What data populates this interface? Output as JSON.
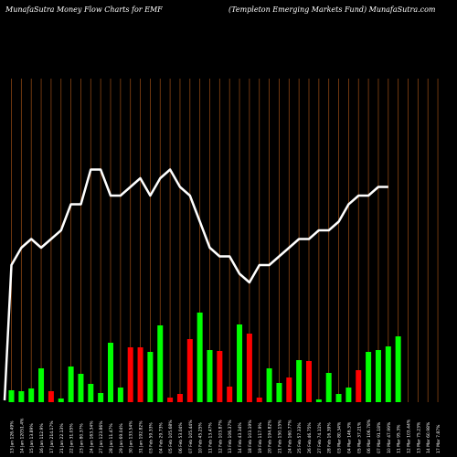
{
  "header": {
    "left": "MunafaSutra  Money Flow  Charts for EMF",
    "right": "(Templeton  Emerging Markets Fund) MunafaSutra.com"
  },
  "chart_data": {
    "type": "bar",
    "title": "MunafaSutra  Money Flow  Charts for EMF",
    "subtitle": "(Templeton  Emerging Markets Fund) MunafaSutra.com",
    "colors": {
      "up": "#00ff00",
      "down": "#ff0000",
      "price_line": "#ffffff",
      "grid": "#8b4513",
      "background": "#000000"
    },
    "x_labels": [
      "13 Jan 126.49%",
      "14 Jan 12051.4%",
      "15 Jan 13.89%",
      "16 Jan 112.9%",
      "17 Jan 214.17%",
      "21 Jan 22.13%",
      "22 Jan 31.05%",
      "23 Jan 80.37%",
      "24 Jan 163.34%",
      "27 Jan 123.86%",
      "28 Jan 11.47%",
      "29 Jan 69.04%",
      "30 Jan 133.54%",
      "31 Jan 192.82%",
      "03 Feb 59.33%",
      "04 Feb 29.73%",
      "05 Feb 105.68%",
      "06 Feb 53.04%",
      "07 Feb 105.44%",
      "10 Feb 45.25%",
      "11 Feb 13.47%",
      "12 Feb 103.87%",
      "13 Feb 106.37%",
      "14 Feb 43.34%",
      "18 Feb 103.19%",
      "19 Feb 117.9%",
      "20 Feb 194.82%",
      "21 Feb 150.15%",
      "24 Feb 160.77%",
      "25 Feb 57.33%",
      "26 Feb 46.75%",
      "27 Feb 74.11%",
      "28 Feb 16.39%",
      "03 Mar 80.34%",
      "04 Mar 146.3%",
      "05 Mar 37.21%",
      "06 Mar 106.78%",
      "07 Mar 91.18%",
      "10 Mar 47.99%",
      "11 Mar 95.3%",
      "12 Mar 103.44%",
      "13 Mar 75.23%",
      "14 Mar 60.98%",
      "17 Mar 7.87%"
    ],
    "volume_direction": [
      "up",
      "up",
      "up",
      "up",
      "down",
      "up",
      "up",
      "up",
      "up",
      "up",
      "up",
      "up",
      "down",
      "down",
      "up",
      "up",
      "down",
      "down",
      "down",
      "up",
      "up",
      "down",
      "down",
      "up",
      "down",
      "down",
      "up",
      "up",
      "down",
      "up",
      "down",
      "up",
      "up",
      "up",
      "up",
      "down",
      "up",
      "up",
      "up",
      "up",
      "up",
      "up",
      "up",
      "up"
    ],
    "volume_values": [
      13,
      12,
      15,
      37,
      12,
      4,
      39,
      31,
      20,
      10,
      65,
      16,
      60,
      60,
      55,
      84,
      5,
      9,
      69,
      98,
      57,
      56,
      17,
      85,
      75,
      5,
      37,
      21,
      27,
      46,
      45,
      3,
      32,
      9,
      16,
      35,
      55,
      57,
      61,
      72,
      null,
      null,
      null,
      null
    ],
    "price_values": [
      100,
      102,
      103,
      102,
      103,
      104,
      107,
      107,
      111,
      111,
      108,
      108,
      109,
      110,
      108,
      110,
      111,
      109,
      108,
      105,
      102,
      101,
      101,
      99,
      98,
      100,
      100,
      101,
      102,
      103,
      103,
      104,
      104,
      105,
      107,
      108,
      108,
      109,
      109,
      null,
      null,
      null,
      null,
      null
    ]
  }
}
